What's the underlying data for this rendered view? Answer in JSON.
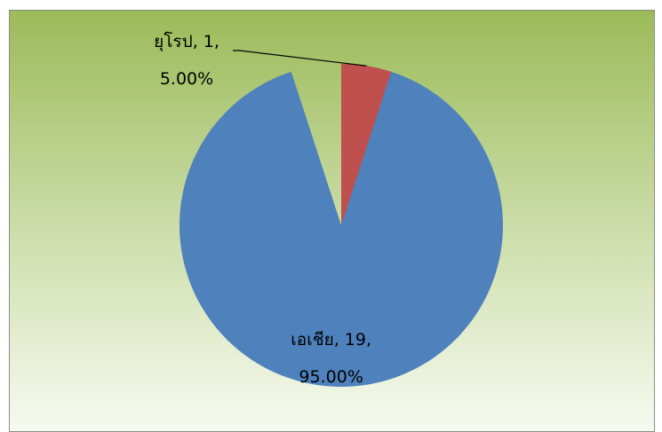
{
  "chart_data": {
    "type": "pie",
    "categories": [
      "เอเชีย",
      "ยุโรป"
    ],
    "values": [
      19,
      1
    ],
    "percentages": [
      95,
      5
    ],
    "percentage_labels": [
      "95.00%",
      "5.00%"
    ],
    "label_separator": ",",
    "colors": [
      "#4f81bd",
      "#c0504d"
    ],
    "start_angle": 0,
    "direction": "clockwise"
  }
}
